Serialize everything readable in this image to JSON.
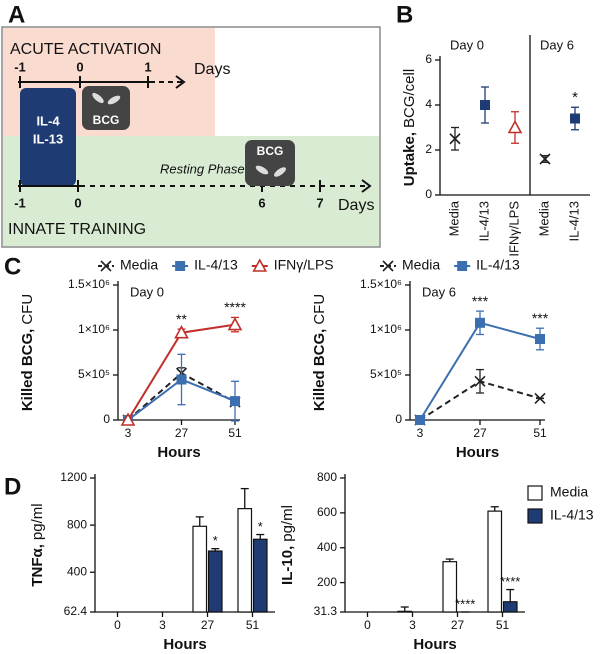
{
  "panel_labels": [
    "A",
    "B",
    "C",
    "D"
  ],
  "diagram": {
    "acute_title": "ACUTE ACTIVATION",
    "acute_ticks": [
      "-1",
      "0",
      "1"
    ],
    "acute_unit": "Days",
    "cytokine": [
      "IL-4",
      "IL-13"
    ],
    "bcg": [
      "BCG",
      "BCG"
    ],
    "resting": "Resting Phase",
    "training_ticks": [
      "-1",
      "0",
      "6",
      "7"
    ],
    "training_unit": "Days",
    "training_title": "INNATE TRAINING"
  },
  "chart_data": [
    {
      "type": "scatter",
      "ylabel": {
        "bold": "Uptake,",
        "rest": "BCG/cell"
      },
      "ylim": [
        0,
        6
      ],
      "yticks": [
        0,
        2,
        4,
        6
      ],
      "groups": [
        {
          "title": "Day 0",
          "categories": [
            "Media",
            "IL-4/13",
            "IFNγ/LPS"
          ],
          "values": [
            2.5,
            4.0,
            3.0
          ],
          "errors": [
            0.5,
            0.8,
            0.7
          ],
          "colors": [
            "#222222",
            "#1f3b73",
            "#c0302a"
          ],
          "markers": [
            "x",
            "square",
            "triangle"
          ]
        },
        {
          "title": "Day 6",
          "categories": [
            "Media",
            "IL-4/13"
          ],
          "values": [
            1.6,
            3.4
          ],
          "errors": [
            0.15,
            0.5
          ],
          "colors": [
            "#222222",
            "#1f3b73"
          ],
          "markers": [
            "x",
            "square"
          ],
          "annotations": [
            null,
            "*"
          ]
        }
      ]
    },
    {
      "type": "line",
      "title": "Day 0",
      "x": [
        3,
        27,
        51
      ],
      "xlim": [
        3,
        51
      ],
      "xticks": [
        3,
        27,
        51
      ],
      "xlabel": "Hours",
      "ylabel": {
        "bold": "Killed BCG,",
        "rest": "CFU"
      },
      "ylim": [
        0,
        1500000
      ],
      "yticks": [
        0,
        {
          "value": 500000,
          "label": "5×10⁵"
        },
        {
          "value": 1000000,
          "label": "1×10⁶"
        },
        {
          "value": 1500000,
          "label": "1.5×10⁶"
        }
      ],
      "series": [
        {
          "name": "Media",
          "color": "#222222",
          "marker": "x",
          "dash": true,
          "values": [
            0,
            520000,
            200000
          ],
          "errors": [
            0,
            60000,
            0
          ]
        },
        {
          "name": "IL-4/13",
          "color": "#3c6fb0",
          "marker": "square",
          "dash": false,
          "values": [
            0,
            450000,
            210000
          ],
          "errors": [
            0,
            280000,
            220000
          ]
        },
        {
          "name": "IFNγ/LPS",
          "color": "#c0302a",
          "marker": "triangle",
          "dash": false,
          "values": [
            0,
            970000,
            1060000
          ],
          "errors": [
            0,
            40000,
            80000
          ]
        }
      ],
      "annotations": [
        null,
        "**",
        "****"
      ]
    },
    {
      "type": "line",
      "title": "Day 6",
      "x": [
        3,
        27,
        51
      ],
      "xlim": [
        3,
        51
      ],
      "xticks": [
        3,
        27,
        51
      ],
      "xlabel": "Hours",
      "ylabel": {
        "bold": "Killed BCG,",
        "rest": "CFU"
      },
      "ylim": [
        0,
        1500000
      ],
      "yticks": [
        0,
        {
          "value": 500000,
          "label": "5×10⁵"
        },
        {
          "value": 1000000,
          "label": "1×10⁶"
        },
        {
          "value": 1500000,
          "label": "1.5×10⁶"
        }
      ],
      "series": [
        {
          "name": "Media",
          "color": "#222222",
          "marker": "x",
          "dash": true,
          "values": [
            0,
            430000,
            240000
          ],
          "errors": [
            0,
            130000,
            0
          ]
        },
        {
          "name": "IL-4/13",
          "color": "#3c6fb0",
          "marker": "square",
          "dash": false,
          "values": [
            0,
            1080000,
            900000
          ],
          "errors": [
            0,
            130000,
            120000
          ]
        }
      ],
      "annotations": [
        null,
        "***",
        "***"
      ]
    },
    {
      "type": "bar",
      "categories": [
        0,
        3,
        27,
        51
      ],
      "xlabel": "Hours",
      "ylabel": {
        "bold": "TNFα,",
        "rest": "pg/ml"
      },
      "ylim": [
        62.4,
        1200
      ],
      "yticks": [
        62.4,
        400,
        800,
        1200
      ],
      "legend": false,
      "series": [
        {
          "color": "#ffffff",
          "values": [
            null,
            null,
            790,
            940
          ],
          "errors": [
            null,
            null,
            80,
            170
          ]
        },
        {
          "color": "#1f3b73",
          "values": [
            null,
            null,
            580,
            680
          ],
          "errors": [
            null,
            null,
            20,
            40
          ],
          "annotations": [
            null,
            null,
            "*",
            "*"
          ]
        }
      ]
    },
    {
      "type": "bar",
      "categories": [
        0,
        3,
        27,
        51
      ],
      "xlabel": "Hours",
      "ylabel": {
        "bold": "IL-10,",
        "rest": "pg/ml"
      },
      "ylim": [
        31.3,
        800
      ],
      "yticks": [
        31.3,
        200,
        400,
        600,
        800
      ],
      "legend": true,
      "series": [
        {
          "name": "Media",
          "color": "#ffffff",
          "values": [
            null,
            35,
            320,
            610
          ],
          "errors": [
            null,
            25,
            15,
            25
          ]
        },
        {
          "name": "IL-4/13",
          "color": "#1f3b73",
          "values": [
            null,
            null,
            31.3,
            90
          ],
          "errors": [
            null,
            null,
            0,
            70
          ],
          "annotations": [
            null,
            null,
            "****",
            "****"
          ]
        }
      ]
    }
  ]
}
